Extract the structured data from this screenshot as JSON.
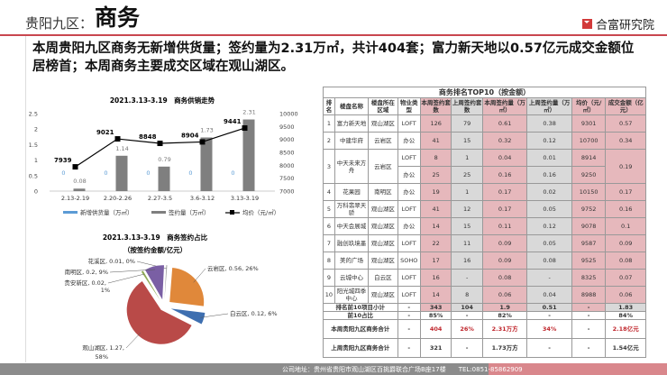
{
  "header": {
    "subtitle": "贵阳九区：",
    "title": "商务",
    "logo": "合富研究院"
  },
  "summary": "本周贵阳九区商务无新增供货量；签约量为2.31万㎡，共计404套；富力新天地以0.57亿元成交金额位居榜首；本周商务主要成交区域在观山湖区。",
  "chart_data": [
    {
      "type": "bar",
      "title": "2021.3.13-3.19　商务供销走势",
      "categories": [
        "2.13-2.19",
        "2.20-2.26",
        "2.27-3.5",
        "3.6-3.12",
        "3.13-3.19"
      ],
      "series": [
        {
          "name": "新增供货量（万㎡）",
          "type": "bar",
          "axis": "left",
          "color": "#5b9bd5",
          "values": [
            0,
            0,
            0,
            0,
            0
          ]
        },
        {
          "name": "签约量（万㎡）",
          "type": "bar",
          "axis": "left",
          "color": "#7f7f7f",
          "values": [
            0.08,
            1.14,
            0.79,
            1.73,
            2.31
          ]
        },
        {
          "name": "均价（元/㎡）",
          "type": "line",
          "axis": "right",
          "color": "#000000",
          "values": [
            7939,
            9021,
            8848,
            8904,
            9441
          ]
        }
      ],
      "ylim": [
        0,
        2.5
      ],
      "yticks": [
        "0",
        "0.5",
        "1",
        "1.5",
        "2",
        "2.5"
      ],
      "y2lim": [
        7000,
        10000
      ],
      "y2ticks": [
        "7000",
        "7500",
        "8000",
        "8500",
        "9000",
        "9500",
        "10000"
      ],
      "legend": "bottom"
    },
    {
      "type": "pie",
      "title": "2021.3.13-3.19　商务签约占比",
      "subtitle": "（按签约金额/亿元）",
      "slices": [
        {
          "label": "花溪区, 0.01, 0%",
          "value": 0.01,
          "color": "#a5a5a5"
        },
        {
          "label": "云岩区, 0.56, 26%",
          "value": 0.56,
          "color": "#e0883a"
        },
        {
          "label": "白云区, 0.12, 6%",
          "value": 0.12,
          "color": "#3e6fb0"
        },
        {
          "label": "观山湖区, 1.27, 58%",
          "value": 1.27,
          "color": "#b94a48"
        },
        {
          "label": "贵安新区, 0.02, 1%",
          "value": 0.02,
          "color": "#8faa55"
        },
        {
          "label": "南明区, 0.2, 9%",
          "value": 0.2,
          "color": "#7a5fa4"
        }
      ]
    }
  ],
  "table": {
    "title": "商务排名TOP10（按金额）",
    "headers": [
      "排名",
      "楼盘名称",
      "楼盘所在区域",
      "物业类型",
      "本周签约套数",
      "上周签约套数",
      "本周签约量（万㎡）",
      "上周签约量（万㎡）",
      "均价（元/㎡）",
      "成交金额（亿元）"
    ],
    "rows": [
      [
        "1",
        "富力新天地",
        "观山湖区",
        "LOFT",
        "126",
        "79",
        "0.61",
        "0.38",
        "9301",
        "0.57"
      ],
      [
        "2",
        "中建华府",
        "云岩区",
        "办公",
        "41",
        "15",
        "0.32",
        "0.12",
        "10700",
        "0.34"
      ],
      [
        "3",
        "中天未来方舟",
        "云岩区",
        "LOFT",
        "8",
        "1",
        "0.04",
        "0.01",
        "8914",
        "0.19"
      ],
      [
        "",
        "",
        "",
        "办公",
        "25",
        "25",
        "0.16",
        "0.16",
        "9250",
        ""
      ],
      [
        "4",
        "花果园",
        "南明区",
        "办公",
        "19",
        "1",
        "0.17",
        "0.02",
        "10150",
        "0.17"
      ],
      [
        "5",
        "万科翡翠天骄",
        "观山湖区",
        "LOFT",
        "41",
        "12",
        "0.17",
        "0.05",
        "9752",
        "0.16"
      ],
      [
        "6",
        "中天会展城",
        "观山湖区",
        "办公",
        "14",
        "15",
        "0.11",
        "0.12",
        "9078",
        "0.1"
      ],
      [
        "7",
        "融创玖境墨",
        "观山湖区",
        "LOFT",
        "22",
        "11",
        "0.09",
        "0.05",
        "9587",
        "0.09"
      ],
      [
        "8",
        "美的广场",
        "观山湖区",
        "SOHO",
        "17",
        "16",
        "0.09",
        "0.08",
        "9525",
        "0.08"
      ],
      [
        "9",
        "云城中心",
        "白云区",
        "LOFT",
        "16",
        "-",
        "0.08",
        "-",
        "8325",
        "0.07"
      ],
      [
        "10",
        "阳光城四季中心",
        "观山湖区",
        "LOFT",
        "14",
        "8",
        "0.06",
        "0.04",
        "8988",
        "0.06"
      ]
    ],
    "summary_rows": [
      [
        "排名前10项目小计",
        "-",
        "343",
        "104",
        "1.9",
        "0.51",
        "-",
        "1.83"
      ],
      [
        "前10占比",
        "-",
        "85%",
        "-",
        "82%",
        "-",
        "-",
        "84%"
      ],
      [
        "本周贵阳九区商务合计",
        "-",
        "404",
        "26%",
        "2.31万方",
        "34%",
        "-",
        "2.18亿元"
      ],
      [
        "上周贵阳九区商务合计",
        "-",
        "321",
        "-",
        "1.73万方",
        "-",
        "-",
        "1.54亿元"
      ]
    ]
  },
  "footer": "公司地址：贵州省贵阳市观山湖区百挑爵联合广场B座17楼　　TEL:0851-85862909"
}
